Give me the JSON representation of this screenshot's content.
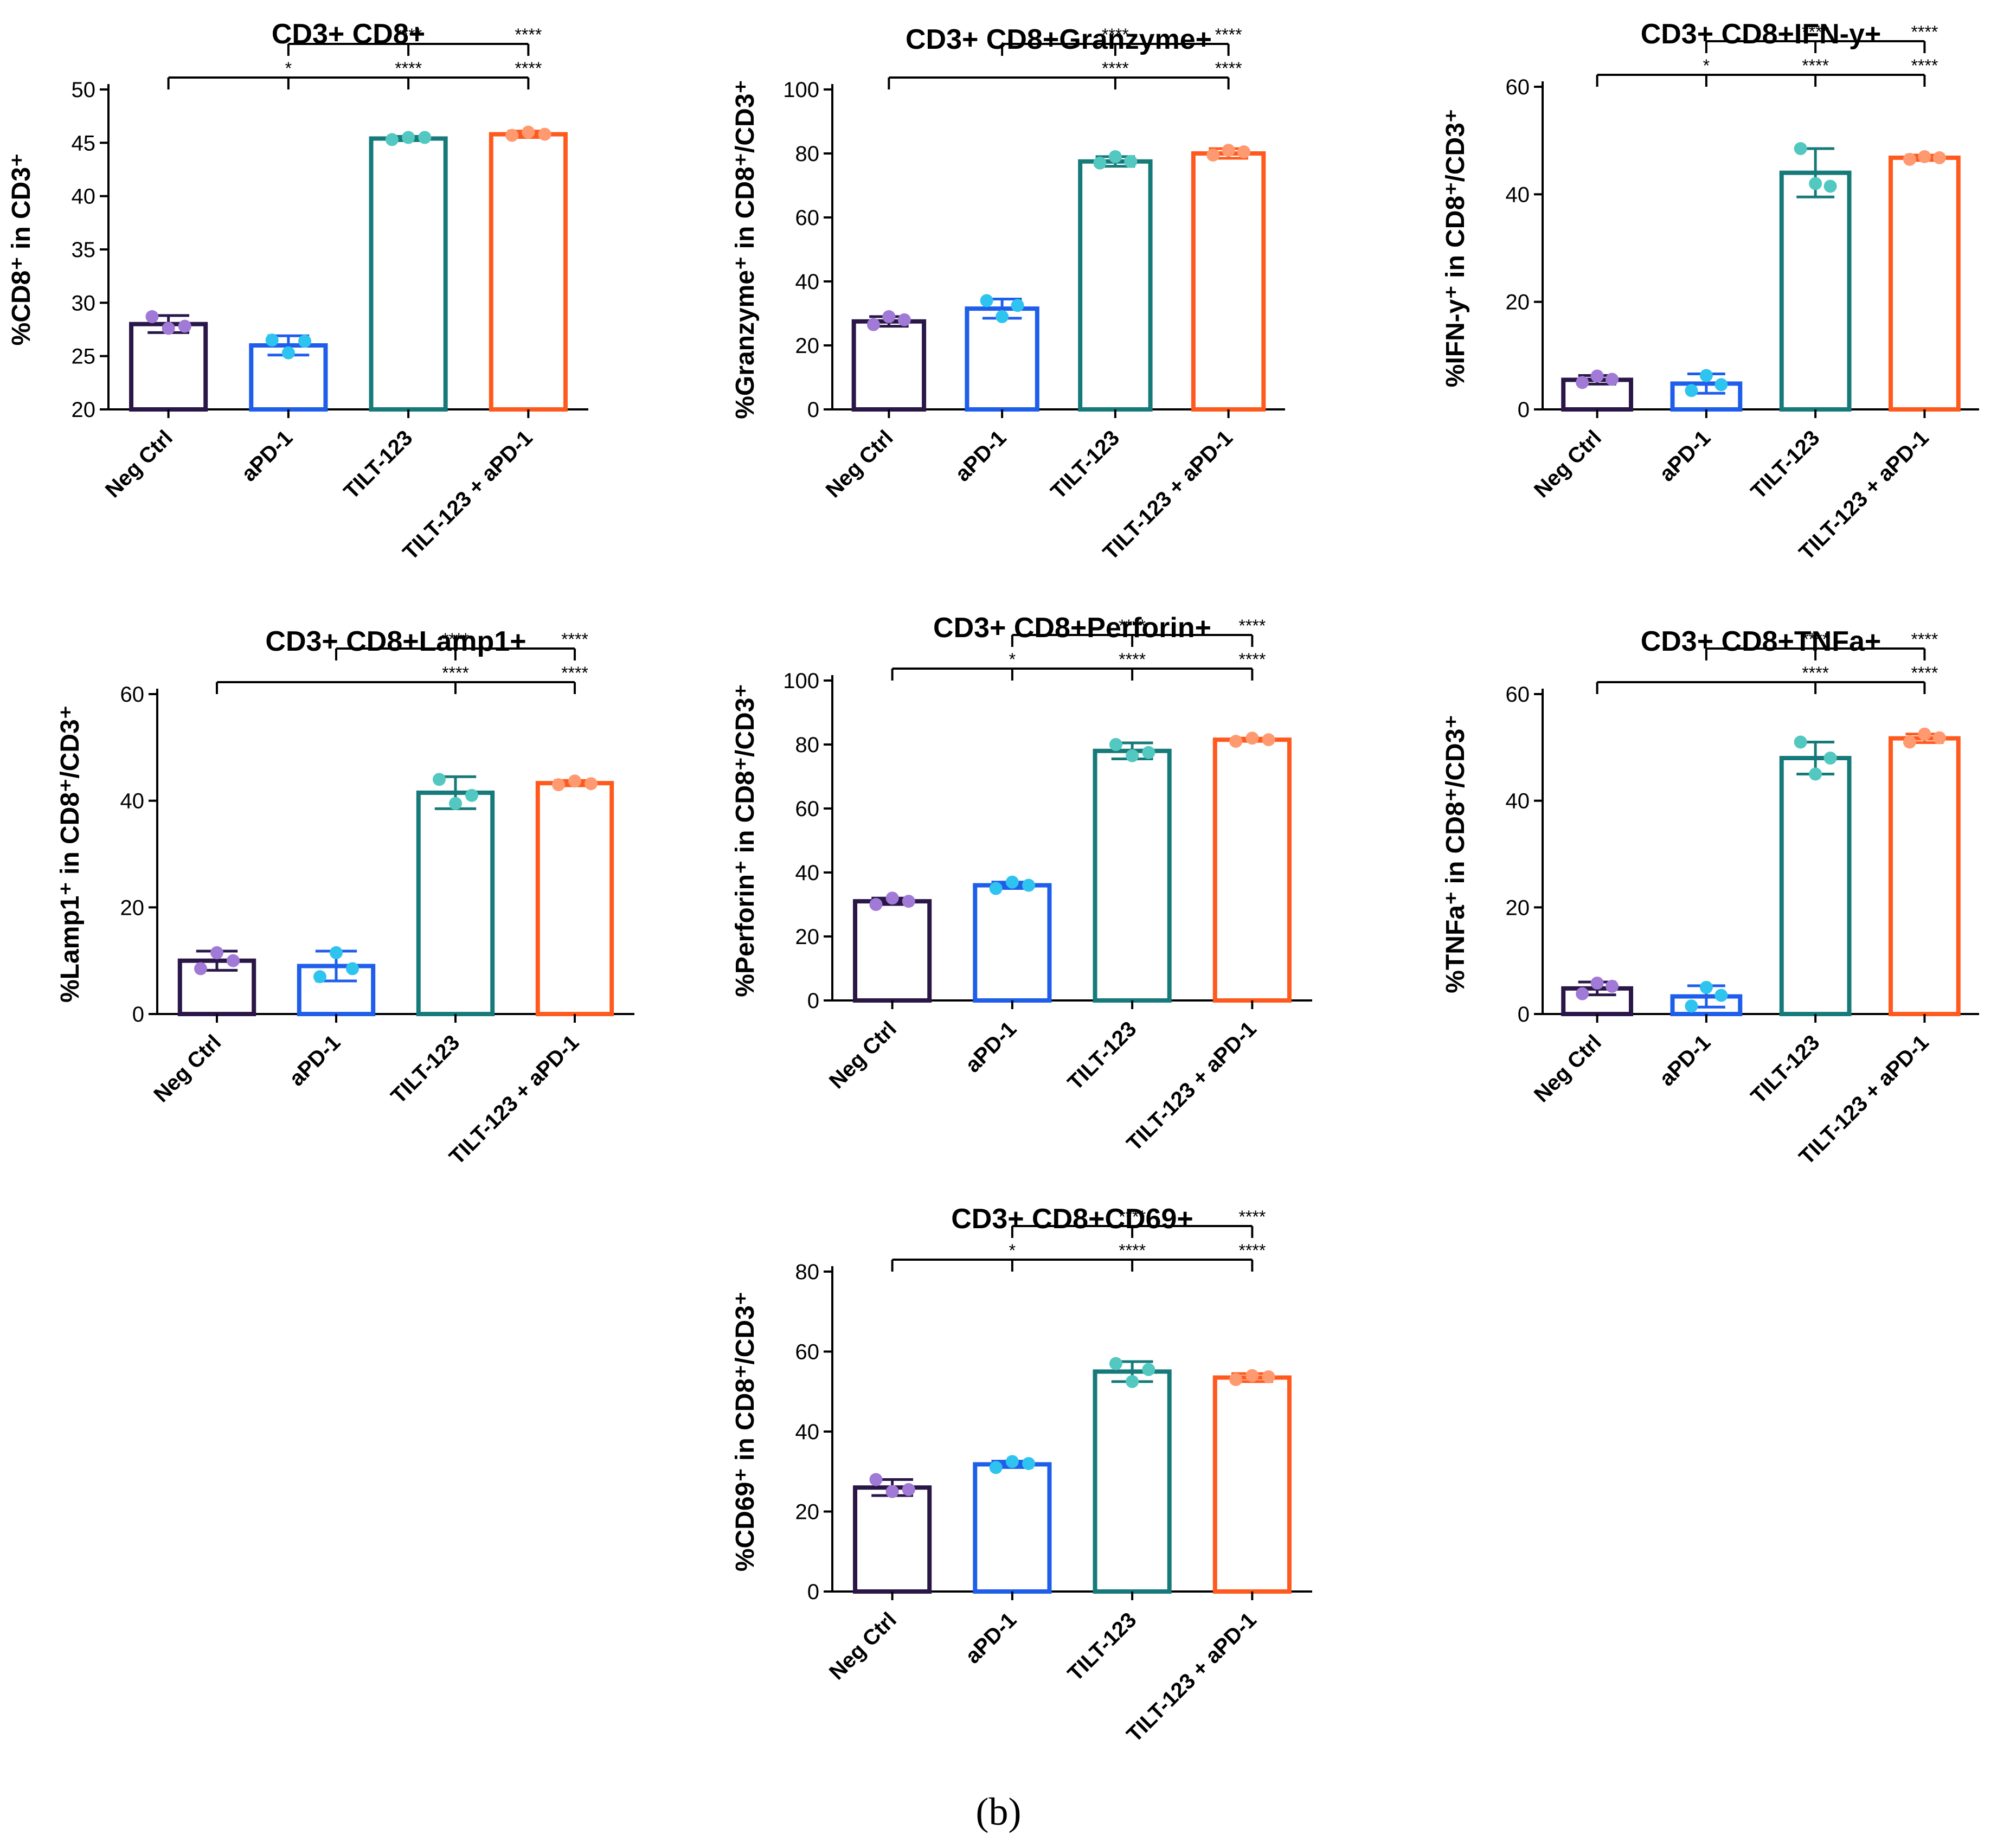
{
  "figure": {
    "caption": "(b)"
  },
  "colors": {
    "neg_ctrl": {
      "bar": "#2a1748",
      "point": "#a07ad6"
    },
    "apd1": {
      "bar": "#1e5eea",
      "point": "#2ec4ef"
    },
    "tilt123": {
      "bar": "#177a7a",
      "point": "#52c8c0"
    },
    "combo": {
      "bar": "#ff5a1e",
      "point": "#ff9a70"
    }
  },
  "chart_data": [
    {
      "type": "bar",
      "title": "CD3+ CD8+",
      "ylabel": "%CD8⁺ in CD3⁺",
      "categories": [
        "Neg Ctrl",
        "aPD-1",
        "TILT-123",
        "TILT-123 + aPD-1"
      ],
      "values": [
        28.0,
        26.0,
        45.4,
        45.8
      ],
      "errors": [
        0.8,
        0.9,
        0.2,
        0.3
      ],
      "points": [
        [
          28.7,
          27.6,
          27.8
        ],
        [
          26.5,
          25.3,
          26.4
        ],
        [
          45.3,
          45.5,
          45.5
        ],
        [
          45.7,
          46.0,
          45.8
        ]
      ],
      "ylim": [
        20,
        50
      ],
      "yticks": [
        20,
        25,
        30,
        35,
        40,
        45,
        50
      ],
      "significance": [
        {
          "row": 1,
          "from": "aPD-1",
          "drops": [
            "aPD-1",
            "TILT-123",
            "TILT-123 + aPD-1"
          ],
          "labels": [
            "****",
            "****"
          ]
        },
        {
          "row": 0,
          "from": "Neg Ctrl",
          "drops": [
            "Neg Ctrl",
            "aPD-1",
            "TILT-123",
            "TILT-123 + aPD-1"
          ],
          "labels": [
            "*",
            "****",
            "****"
          ]
        }
      ]
    },
    {
      "type": "bar",
      "title": "CD3+ CD8+Granzyme+",
      "ylabel": "%Granzyme⁺ in CD8⁺/CD3⁺",
      "categories": [
        "Neg Ctrl",
        "aPD-1",
        "TILT-123",
        "TILT-123 + aPD-1"
      ],
      "values": [
        27.5,
        31.5,
        77.5,
        80.0
      ],
      "errors": [
        1.5,
        3.0,
        1.5,
        1.5
      ],
      "points": [
        [
          26.5,
          29.0,
          28.0
        ],
        [
          34.0,
          29.0,
          32.5
        ],
        [
          77.0,
          79.0,
          77.5
        ],
        [
          79.5,
          81.0,
          80.5
        ]
      ],
      "ylim": [
        0,
        100
      ],
      "yticks": [
        0,
        20,
        40,
        60,
        80,
        100
      ],
      "significance": [
        {
          "row": 1,
          "from": "aPD-1",
          "drops": [
            "aPD-1",
            "TILT-123",
            "TILT-123 + aPD-1"
          ],
          "labels": [
            "****",
            "****"
          ]
        },
        {
          "row": 0,
          "from": "Neg Ctrl",
          "drops": [
            "Neg Ctrl",
            "TILT-123",
            "TILT-123 + aPD-1"
          ],
          "labels": [
            "****",
            "****"
          ]
        }
      ]
    },
    {
      "type": "bar",
      "title": "CD3+ CD8+IFN-y+",
      "ylabel": "%IFN-y⁺ in CD8⁺/CD3⁺",
      "categories": [
        "Neg Ctrl",
        "aPD-1",
        "TILT-123",
        "TILT-123 + aPD-1"
      ],
      "values": [
        5.5,
        4.8,
        44.0,
        46.8
      ],
      "errors": [
        0.8,
        1.8,
        4.5,
        0.5
      ],
      "points": [
        [
          5.0,
          6.2,
          5.6
        ],
        [
          3.5,
          6.3,
          4.6
        ],
        [
          48.5,
          42.0,
          41.5
        ],
        [
          46.5,
          47.0,
          46.8
        ]
      ],
      "ylim": [
        0,
        60
      ],
      "yticks": [
        0,
        20,
        40,
        60
      ],
      "significance": [
        {
          "row": 1,
          "from": "aPD-1",
          "drops": [
            "aPD-1",
            "TILT-123",
            "TILT-123 + aPD-1"
          ],
          "labels": [
            "****",
            "****"
          ]
        },
        {
          "row": 0,
          "from": "Neg Ctrl",
          "drops": [
            "Neg Ctrl",
            "aPD-1",
            "TILT-123",
            "TILT-123 + aPD-1"
          ],
          "labels": [
            "*",
            "****",
            "****"
          ]
        }
      ]
    },
    {
      "type": "bar",
      "title": "CD3+ CD8+Lamp1+",
      "ylabel": "%Lamp1⁺ in CD8⁺/CD3⁺",
      "categories": [
        "Neg Ctrl",
        "aPD-1",
        "TILT-123",
        "TILT-123 + aPD-1"
      ],
      "values": [
        10.0,
        9.0,
        41.5,
        43.3
      ],
      "errors": [
        1.8,
        2.8,
        3.0,
        0.5
      ],
      "points": [
        [
          8.5,
          11.5,
          10.0
        ],
        [
          7.0,
          11.5,
          8.5
        ],
        [
          44.0,
          39.5,
          41.0
        ],
        [
          43.0,
          43.7,
          43.2
        ]
      ],
      "ylim": [
        0,
        60
      ],
      "yticks": [
        0,
        20,
        40,
        60
      ],
      "significance": [
        {
          "row": 1,
          "from": "aPD-1",
          "drops": [
            "aPD-1",
            "TILT-123",
            "TILT-123 + aPD-1"
          ],
          "labels": [
            "****",
            "****"
          ]
        },
        {
          "row": 0,
          "from": "Neg Ctrl",
          "drops": [
            "Neg Ctrl",
            "TILT-123",
            "TILT-123 + aPD-1"
          ],
          "labels": [
            "****",
            "****"
          ]
        }
      ]
    },
    {
      "type": "bar",
      "title": "CD3+ CD8+Perforin+",
      "ylabel": "%Perforin⁺ in  CD8⁺/CD3⁺",
      "categories": [
        "Neg Ctrl",
        "aPD-1",
        "TILT-123",
        "TILT-123 + aPD-1"
      ],
      "values": [
        31.0,
        36.0,
        78.0,
        81.5
      ],
      "errors": [
        1.0,
        1.0,
        2.5,
        0.5
      ],
      "points": [
        [
          30.0,
          32.0,
          31.0
        ],
        [
          35.0,
          37.0,
          36.0
        ],
        [
          80.0,
          76.5,
          77.5
        ],
        [
          81.0,
          82.0,
          81.5
        ]
      ],
      "ylim": [
        0,
        100
      ],
      "yticks": [
        0,
        20,
        40,
        60,
        80,
        100
      ],
      "significance": [
        {
          "row": 1,
          "from": "aPD-1",
          "drops": [
            "aPD-1",
            "TILT-123",
            "TILT-123 + aPD-1"
          ],
          "labels": [
            "****",
            "****"
          ]
        },
        {
          "row": 0,
          "from": "Neg Ctrl",
          "drops": [
            "Neg Ctrl",
            "aPD-1",
            "TILT-123",
            "TILT-123 + aPD-1"
          ],
          "labels": [
            "*",
            "****",
            "****"
          ]
        }
      ]
    },
    {
      "type": "bar",
      "title": "CD3+ CD8+TNFa+",
      "ylabel": "%TNFa⁺ in CD8⁺/CD3⁺",
      "categories": [
        "Neg Ctrl",
        "aPD-1",
        "TILT-123",
        "TILT-123 + aPD-1"
      ],
      "values": [
        4.8,
        3.3,
        48.0,
        51.7
      ],
      "errors": [
        1.2,
        2.0,
        3.0,
        0.8
      ],
      "points": [
        [
          3.8,
          5.8,
          5.2
        ],
        [
          1.5,
          5.0,
          3.5
        ],
        [
          51.0,
          45.0,
          48.0
        ],
        [
          51.0,
          52.5,
          51.8
        ]
      ],
      "ylim": [
        0,
        60
      ],
      "yticks": [
        0,
        20,
        40,
        60
      ],
      "significance": [
        {
          "row": 1,
          "from": "aPD-1",
          "drops": [
            "aPD-1",
            "TILT-123",
            "TILT-123 + aPD-1"
          ],
          "labels": [
            "****",
            "****"
          ]
        },
        {
          "row": 0,
          "from": "Neg Ctrl",
          "drops": [
            "Neg Ctrl",
            "TILT-123",
            "TILT-123 + aPD-1"
          ],
          "labels": [
            "****",
            "****"
          ]
        }
      ]
    },
    {
      "type": "bar",
      "title": "CD3+ CD8+CD69+",
      "ylabel": "%CD69⁺ in CD8⁺/CD3⁺",
      "categories": [
        "Neg Ctrl",
        "aPD-1",
        "TILT-123",
        "TILT-123 + aPD-1"
      ],
      "values": [
        26.0,
        31.8,
        55.0,
        53.5
      ],
      "errors": [
        2.0,
        0.8,
        2.5,
        1.0
      ],
      "points": [
        [
          28.0,
          25.0,
          25.5
        ],
        [
          31.0,
          32.5,
          32.0
        ],
        [
          57.0,
          52.5,
          55.5
        ],
        [
          53.0,
          54.0,
          53.7
        ]
      ],
      "ylim": [
        0,
        80
      ],
      "yticks": [
        0,
        20,
        40,
        60,
        80
      ],
      "significance": [
        {
          "row": 1,
          "from": "aPD-1",
          "drops": [
            "aPD-1",
            "TILT-123",
            "TILT-123 + aPD-1"
          ],
          "labels": [
            "****",
            "****"
          ]
        },
        {
          "row": 0,
          "from": "Neg Ctrl",
          "drops": [
            "Neg Ctrl",
            "aPD-1",
            "TILT-123",
            "TILT-123 + aPD-1"
          ],
          "labels": [
            "*",
            "****",
            "****"
          ]
        }
      ]
    }
  ]
}
